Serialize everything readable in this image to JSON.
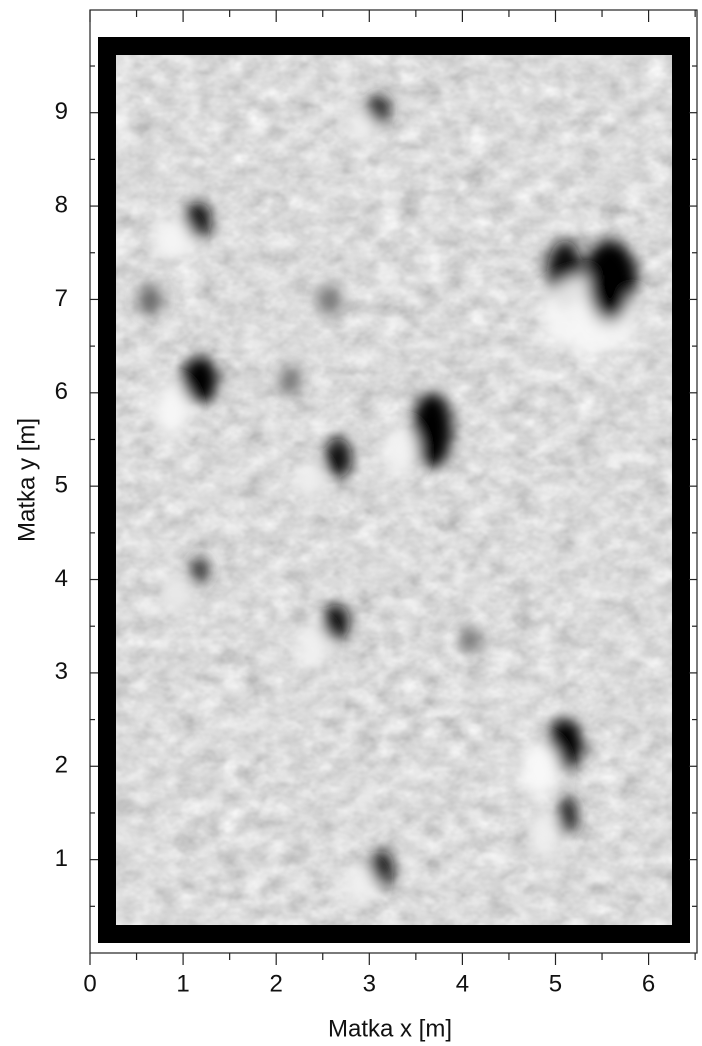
{
  "chart_data": {
    "type": "heatmap",
    "x_label": "Matka x [m]",
    "y_label": "Matka y [m]",
    "xlim": [
      0,
      6.52
    ],
    "ylim": [
      0,
      10.1
    ],
    "xticks": [
      0,
      1,
      2,
      3,
      4,
      5,
      6
    ],
    "yticks": [
      1,
      2,
      3,
      4,
      5,
      6,
      7,
      8,
      9
    ]
  }
}
